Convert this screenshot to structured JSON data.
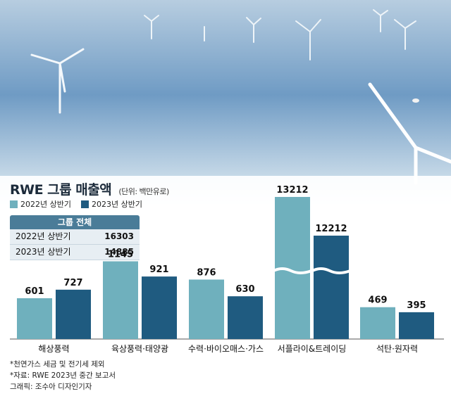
{
  "header": {
    "title": "RWE 그룹 매출액",
    "unit": "(단위: 백만유로)"
  },
  "legend": [
    {
      "label": "2022년 상반기",
      "color": "#6fb0bd"
    },
    {
      "label": "2023년 상반기",
      "color": "#1f5b80"
    }
  ],
  "total_table": {
    "header": "그룹 전체",
    "rows": [
      {
        "label": "2022년 상반기",
        "value": "16303"
      },
      {
        "label": "2023년 상반기",
        "value": "14885"
      }
    ]
  },
  "chart_data": {
    "type": "bar",
    "title": "RWE 그룹 매출액",
    "ylabel": "",
    "xlabel": "",
    "categories": [
      "해상풍력",
      "육상풍력·태양광",
      "수력·바이오매스·가스",
      "서플라이&트레이딩",
      "석탄·원자력"
    ],
    "series": [
      {
        "name": "2022년 상반기",
        "color": "#6fb0bd",
        "values": [
          601,
          1145,
          876,
          13212,
          469
        ]
      },
      {
        "name": "2023년 상반기",
        "color": "#1f5b80",
        "values": [
          727,
          921,
          630,
          12212,
          395
        ]
      }
    ],
    "axis_break": true,
    "grid": false,
    "legend_position": "top-left"
  },
  "notes": [
    "*천연가스 세금 및 전기세 제외",
    "*자료: RWE 2023년 중간 보고서",
    "그래픽: 조수아 디자인기자"
  ]
}
